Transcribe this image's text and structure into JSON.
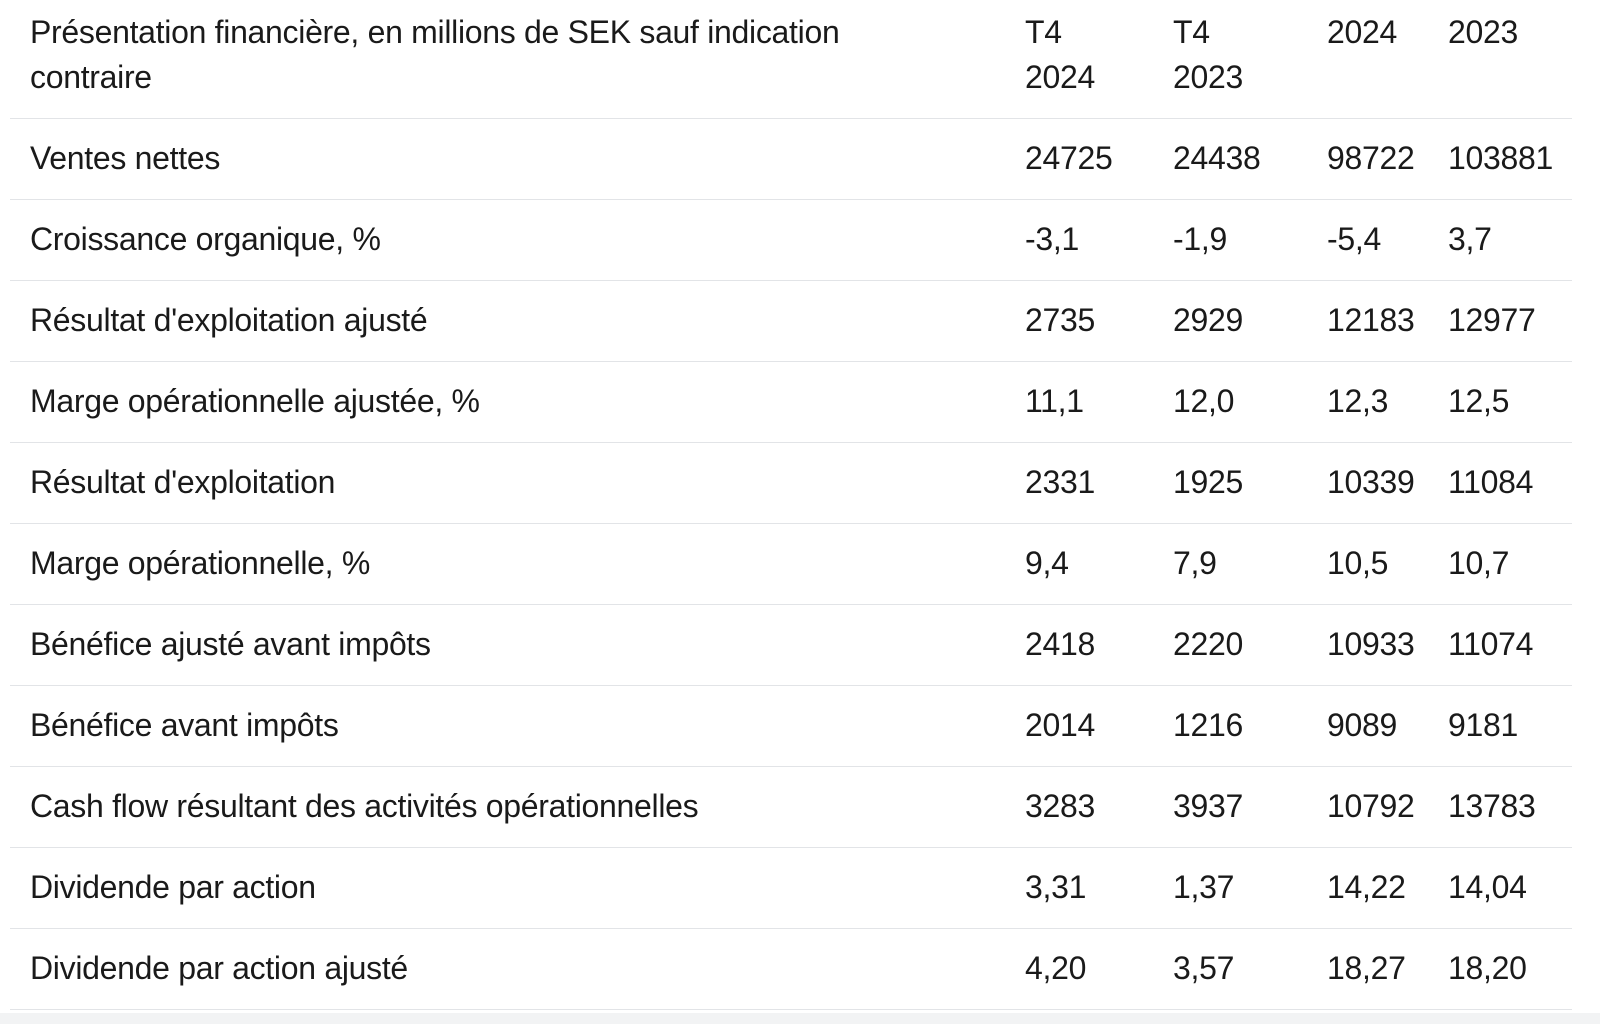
{
  "table": {
    "title_lines": [
      "Présentation financière, en millions de SEK sauf indication",
      "contraire"
    ],
    "unit_note": "en millions de SEK sauf indication contraire",
    "period_headers": [
      {
        "lines": [
          "T4",
          "2024"
        ]
      },
      {
        "lines": [
          "T4",
          "2023"
        ]
      },
      {
        "lines": [
          "2024"
        ]
      },
      {
        "lines": [
          "2023"
        ]
      }
    ],
    "rows": [
      {
        "label": "Ventes nettes",
        "values": [
          "24725",
          "24438",
          "98722",
          "103881"
        ]
      },
      {
        "label": "Croissance organique, %",
        "values": [
          "-3,1",
          "-1,9",
          "-5,4",
          "3,7"
        ]
      },
      {
        "label": "Résultat d'exploitation ajusté",
        "values": [
          "2735",
          "2929",
          "12183",
          "12977"
        ]
      },
      {
        "label": "Marge opérationnelle ajustée, %",
        "values": [
          "11,1",
          "12,0",
          "12,3",
          "12,5"
        ]
      },
      {
        "label": "Résultat d'exploitation",
        "values": [
          "2331",
          "1925",
          "10339",
          "11084"
        ]
      },
      {
        "label": "Marge opérationnelle, %",
        "values": [
          "9,4",
          "7,9",
          "10,5",
          "10,7"
        ]
      },
      {
        "label": "Bénéfice ajusté avant impôts",
        "values": [
          "2418",
          "2220",
          "10933",
          "11074"
        ]
      },
      {
        "label": "Bénéfice avant impôts",
        "values": [
          "2014",
          "1216",
          "9089",
          "9181"
        ]
      },
      {
        "label": "Cash flow résultant des activités opérationnelles",
        "values": [
          "3283",
          "3937",
          "10792",
          "13783"
        ]
      },
      {
        "label": "Dividende par action",
        "values": [
          "3,31",
          "1,37",
          "14,22",
          "14,04"
        ]
      },
      {
        "label": "Dividende par action ajusté",
        "values": [
          "4,20",
          "3,57",
          "18,27",
          "18,20"
        ]
      }
    ]
  },
  "colors": {
    "text": "#1a1a1a",
    "separator": "#e2e4e7",
    "bottom_strip": "#f2f3f4",
    "background": "#ffffff"
  }
}
